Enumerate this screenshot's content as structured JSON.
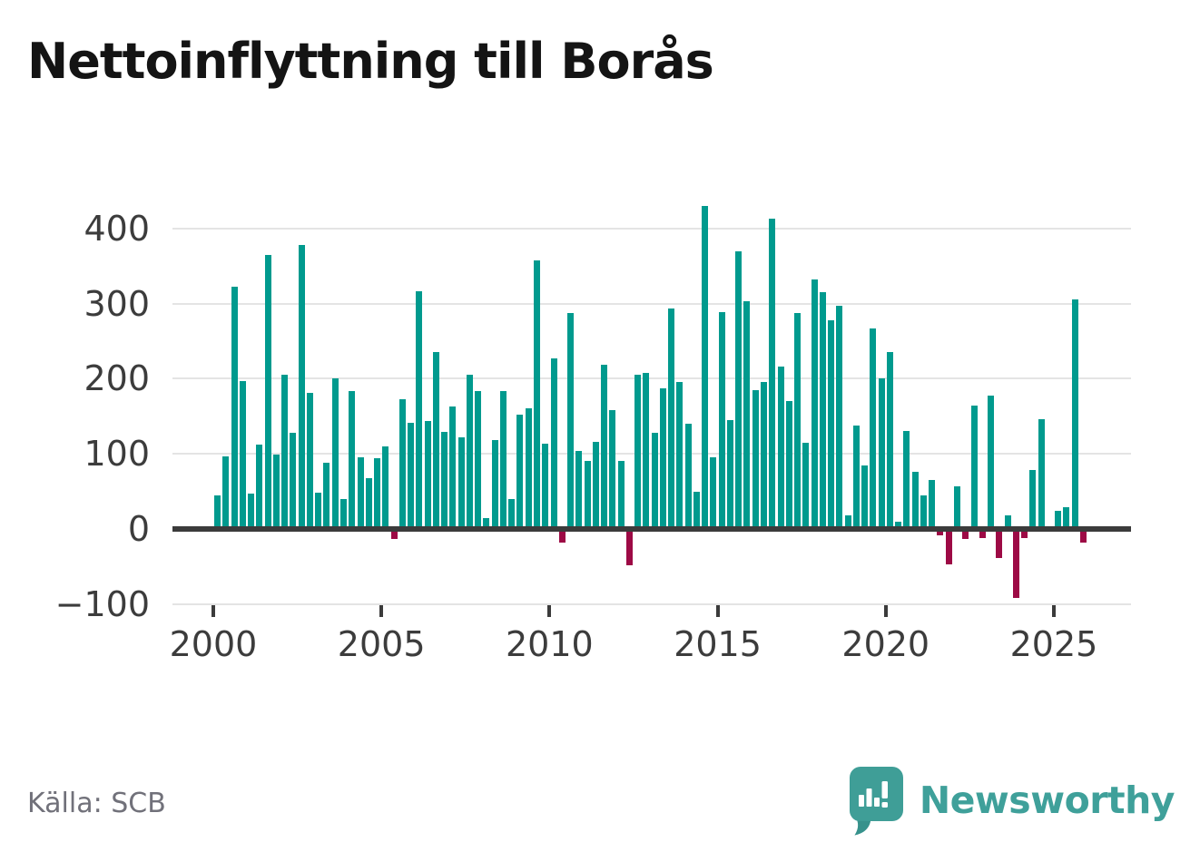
{
  "title": "Nettoinflyttning till Borås",
  "source": {
    "label": "Källa: SCB"
  },
  "brand": {
    "name": "Newsworthy",
    "icon": "newsworthy-speech-bubble-chart-icon"
  },
  "axes": {
    "y_tick_labels": [
      "400",
      "300",
      "200",
      "100",
      "0",
      "−100"
    ],
    "x_tick_labels": [
      "2000",
      "2005",
      "2010",
      "2015",
      "2020",
      "2025"
    ]
  },
  "colors": {
    "bar_positive": "#009a8e",
    "bar_negative": "#9d0a45",
    "axis_line": "#3b3b3b",
    "gridline": "#e4e4e4",
    "tick_text": "#3c3c3c",
    "title_text": "#141414",
    "source_text": "#71717a",
    "brand_teal": "#3f9e97"
  },
  "chart_data": {
    "type": "bar",
    "title": "Nettoinflyttning till Borås",
    "frequency": "quarterly",
    "x_start": "2000-Q1",
    "x_end": "2025-Q4",
    "values": [
      45,
      97,
      322,
      197,
      47,
      112,
      365,
      99,
      205,
      128,
      378,
      181,
      48,
      88,
      200,
      40,
      183,
      95,
      68,
      94,
      110,
      -10,
      173,
      141,
      317,
      144,
      236,
      129,
      163,
      122,
      205,
      183,
      15,
      118,
      183,
      40,
      152,
      161,
      357,
      113,
      227,
      -15,
      287,
      104,
      90,
      116,
      218,
      158,
      91,
      -45,
      205,
      208,
      128,
      187,
      293,
      196,
      140,
      50,
      430,
      95,
      289,
      145,
      370,
      303,
      185,
      196,
      413,
      216,
      170,
      288,
      115,
      332,
      315,
      278,
      297,
      18,
      138,
      85,
      267,
      200,
      236,
      10,
      130,
      76,
      45,
      65,
      -5,
      -43,
      57,
      -10,
      164,
      -9,
      178,
      -35,
      18,
      -88,
      -8,
      78,
      146,
      0,
      24,
      29,
      305,
      -14
    ],
    "yticks": [
      400,
      300,
      200,
      100,
      0,
      -100
    ],
    "xticks": [
      2000,
      2005,
      2010,
      2015,
      2020,
      2025
    ],
    "ylim": [
      -115,
      450
    ],
    "grid": true,
    "legend": false
  }
}
